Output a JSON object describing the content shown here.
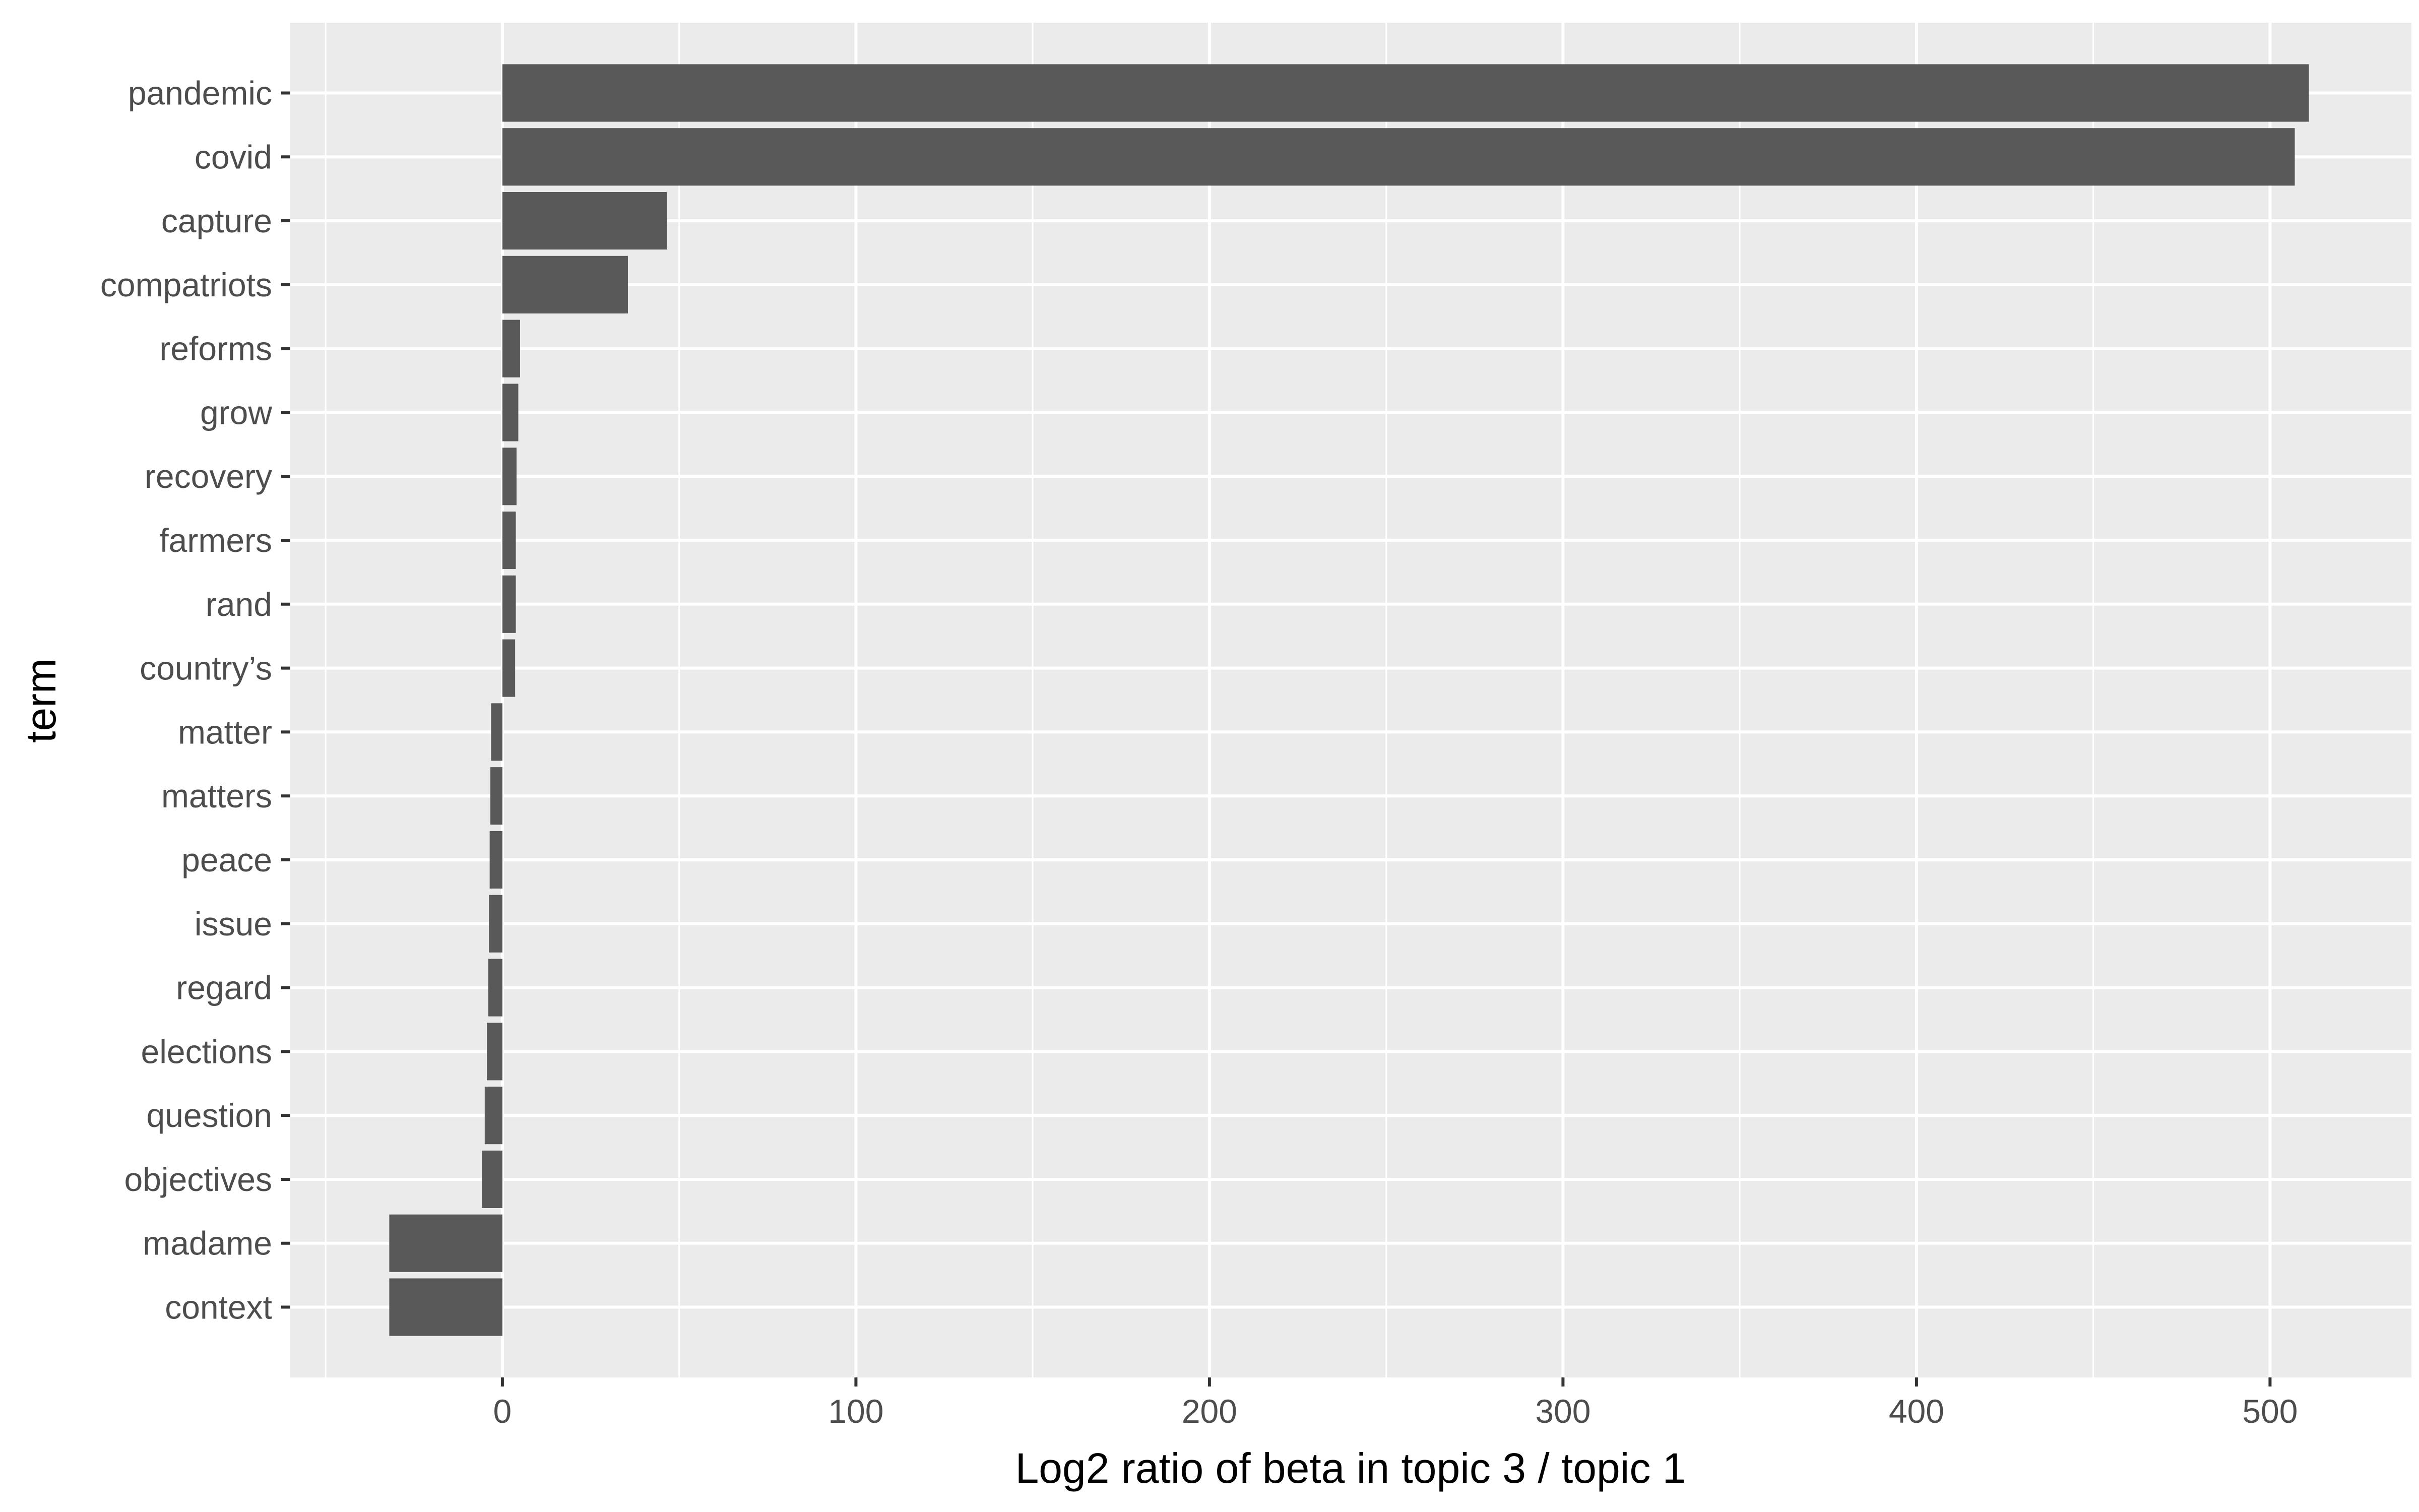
{
  "chart_data": {
    "type": "bar",
    "orientation": "horizontal",
    "xlabel": "Log2 ratio of beta in topic 3 / topic 1",
    "ylabel": "term",
    "xlim": [
      -60,
      540
    ],
    "xticks": [
      0,
      100,
      200,
      300,
      400,
      500
    ],
    "grid": true,
    "legend": "none",
    "colors": {
      "bar": "#595959",
      "panel": "#ebebeb",
      "grid": "#ffffff",
      "tick_text": "#4d4d4d"
    },
    "categories": [
      "pandemic",
      "covid",
      "capture",
      "compatriots",
      "reforms",
      "grow",
      "recovery",
      "farmers",
      "rand",
      "country’s",
      "matter",
      "matters",
      "peace",
      "issue",
      "regard",
      "elections",
      "question",
      "objectives",
      "madame",
      "context"
    ],
    "values": [
      511,
      507,
      46.5,
      35.5,
      5,
      4.5,
      4,
      3.8,
      3.8,
      3.6,
      -3.2,
      -3.4,
      -3.6,
      -3.8,
      -4,
      -4.4,
      -5,
      -5.8,
      -32,
      -32
    ]
  }
}
